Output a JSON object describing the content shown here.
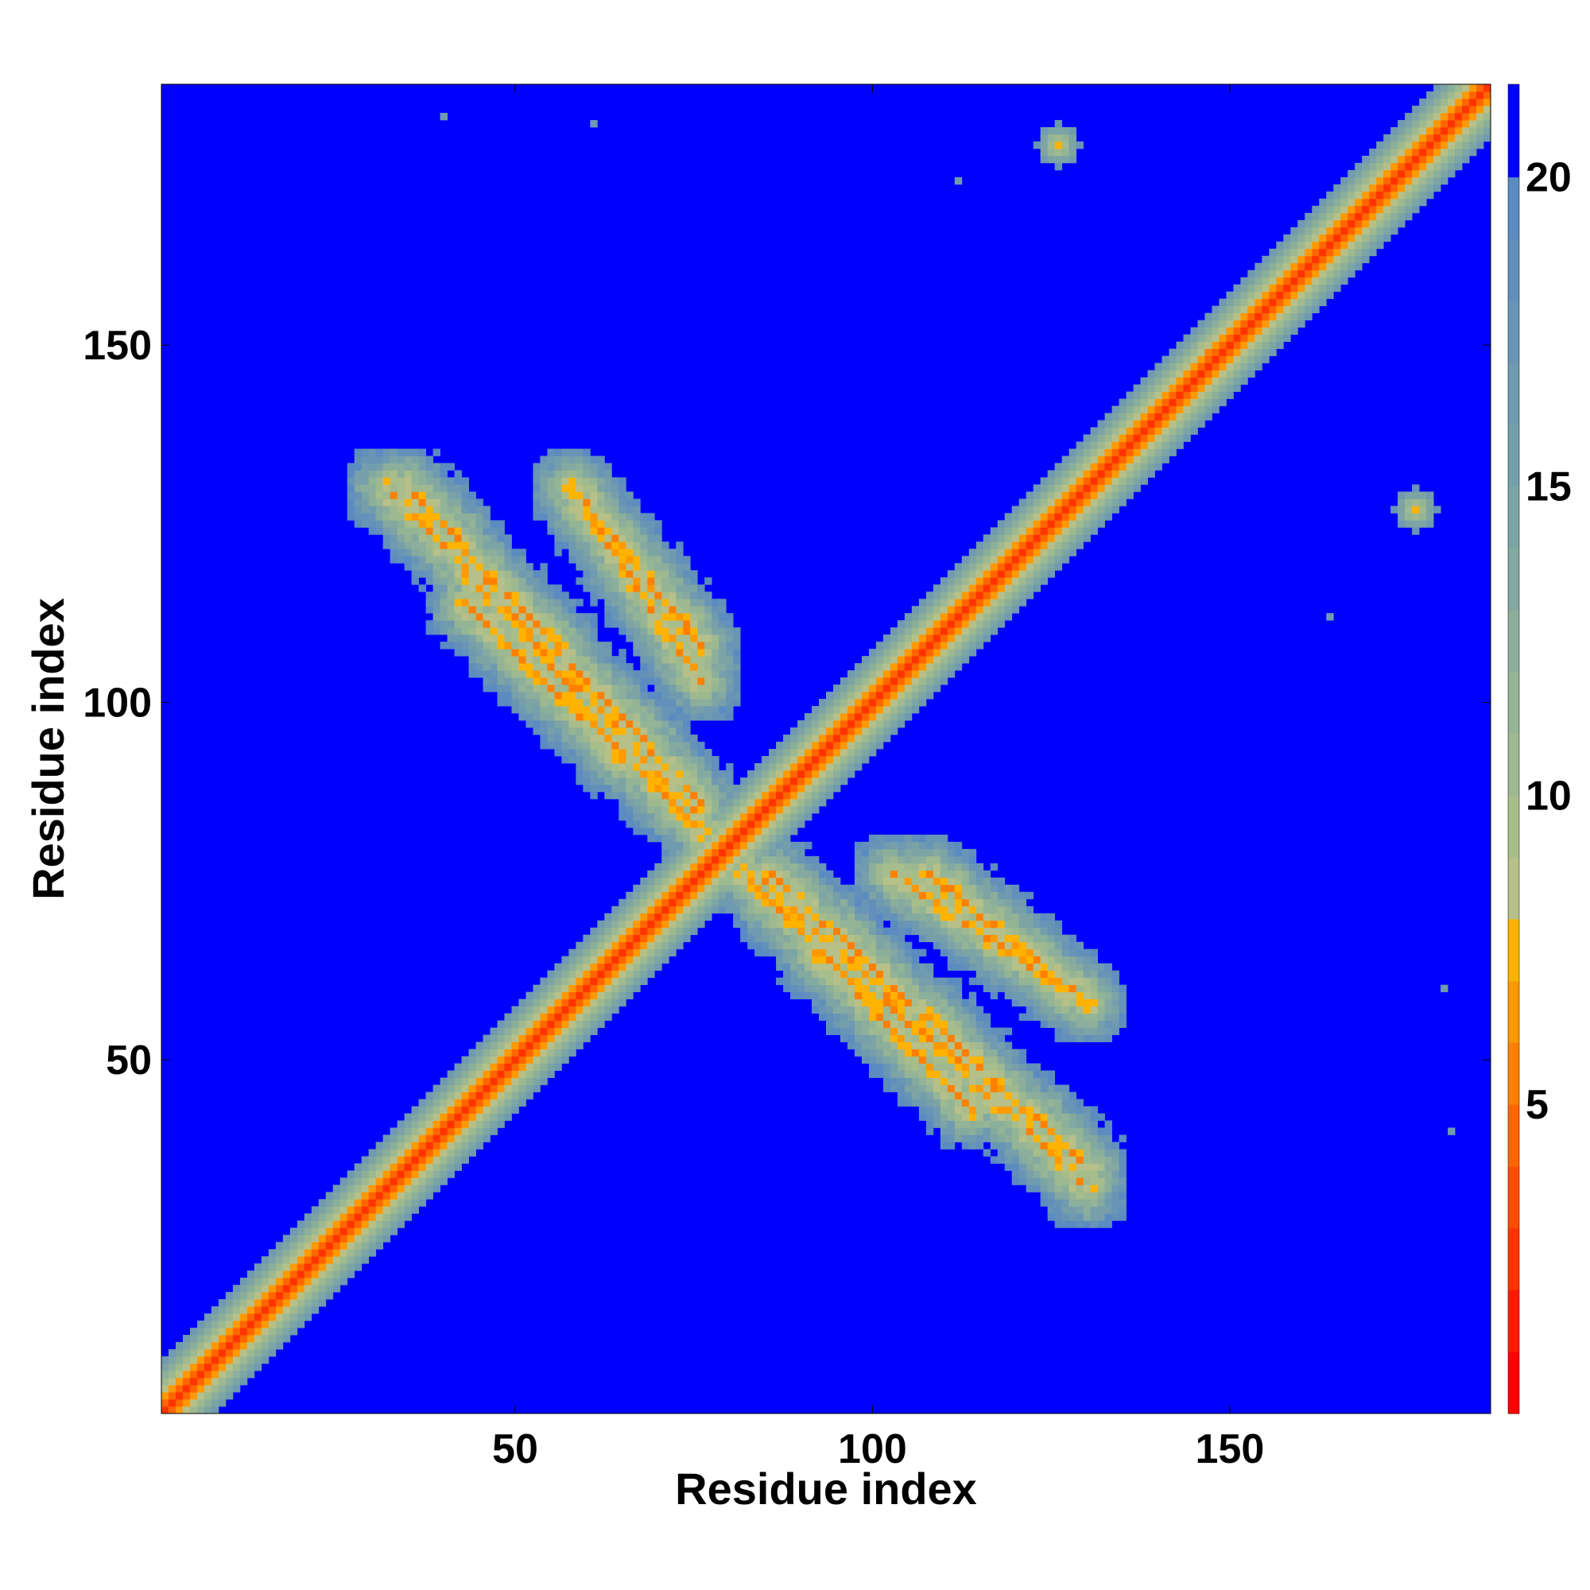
{
  "chart_data": {
    "type": "heatmap",
    "title": "",
    "xlabel": "Residue index",
    "ylabel": "Residue index",
    "xlim": [
      1,
      186
    ],
    "ylim": [
      1,
      186
    ],
    "x_ticks": [
      50,
      100,
      150
    ],
    "y_ticks": [
      50,
      100,
      150
    ],
    "colorbar": {
      "range": [
        0,
        21.5
      ],
      "ticks": [
        5,
        10,
        15,
        20
      ],
      "levels": [
        {
          "from": 0,
          "to": 1,
          "color": "#ff0000"
        },
        {
          "from": 1,
          "to": 2,
          "color": "#ff1a00"
        },
        {
          "from": 2,
          "to": 3,
          "color": "#ff3300"
        },
        {
          "from": 3,
          "to": 4,
          "color": "#ff4d00"
        },
        {
          "from": 4,
          "to": 5,
          "color": "#ff6600"
        },
        {
          "from": 5,
          "to": 6,
          "color": "#ff8000"
        },
        {
          "from": 6,
          "to": 7,
          "color": "#ff9900"
        },
        {
          "from": 7,
          "to": 8,
          "color": "#ffb300"
        },
        {
          "from": 8,
          "to": 9,
          "color": "#b6c088"
        },
        {
          "from": 9,
          "to": 10,
          "color": "#a8bd8c"
        },
        {
          "from": 10,
          "to": 11,
          "color": "#9eb990"
        },
        {
          "from": 11,
          "to": 12,
          "color": "#94b496"
        },
        {
          "from": 12,
          "to": 13,
          "color": "#8caf9b"
        },
        {
          "from": 13,
          "to": 14,
          "color": "#84a9a0"
        },
        {
          "from": 14,
          "to": 15,
          "color": "#7da4a5"
        },
        {
          "from": 15,
          "to": 16,
          "color": "#769fab"
        },
        {
          "from": 16,
          "to": 17,
          "color": "#6f9ab0"
        },
        {
          "from": 17,
          "to": 18,
          "color": "#6895b6"
        },
        {
          "from": 18,
          "to": 19,
          "color": "#6290bb"
        },
        {
          "from": 19,
          "to": 20,
          "color": "#5b8bc0"
        },
        {
          "from": 20,
          "to": 21.5,
          "color": "#0000ff"
        }
      ]
    },
    "background_color": "#0000ff",
    "features": {
      "main_diagonal": {
        "from": 1,
        "to": 186,
        "core_value": 2,
        "halo_width_residues": 7
      },
      "antidiagonals": [
        {
          "from": [
            32,
            130
          ],
          "to": [
            75,
            85
          ],
          "value": 6
        },
        {
          "from": [
            58,
            130
          ],
          "to": [
            76,
            103
          ],
          "value": 6
        },
        {
          "from": [
            43,
            114
          ],
          "to": [
            76,
            82
          ],
          "value": 6
        },
        {
          "from": [
            86,
            76
          ],
          "to": [
            130,
            35
          ],
          "value": 6
        },
        {
          "from": [
            108,
            76
          ],
          "to": [
            130,
            58
          ],
          "value": 6
        },
        {
          "from": [
            92,
            65
          ],
          "to": [
            120,
            44
          ],
          "value": 6
        }
      ],
      "contact_hotspots": [
        {
          "x": 147,
          "y": 149,
          "value": 5
        },
        {
          "x": 33,
          "y": 33,
          "value": 5
        },
        {
          "x": 126,
          "y": 178,
          "value": 7
        },
        {
          "x": 176,
          "y": 127,
          "value": 7
        }
      ],
      "scattered_points": [
        {
          "x": 40,
          "y": 182
        },
        {
          "x": 61,
          "y": 181
        },
        {
          "x": 112,
          "y": 173
        },
        {
          "x": 164,
          "y": 112
        },
        {
          "x": 180,
          "y": 60
        },
        {
          "x": 181,
          "y": 40
        }
      ]
    }
  }
}
